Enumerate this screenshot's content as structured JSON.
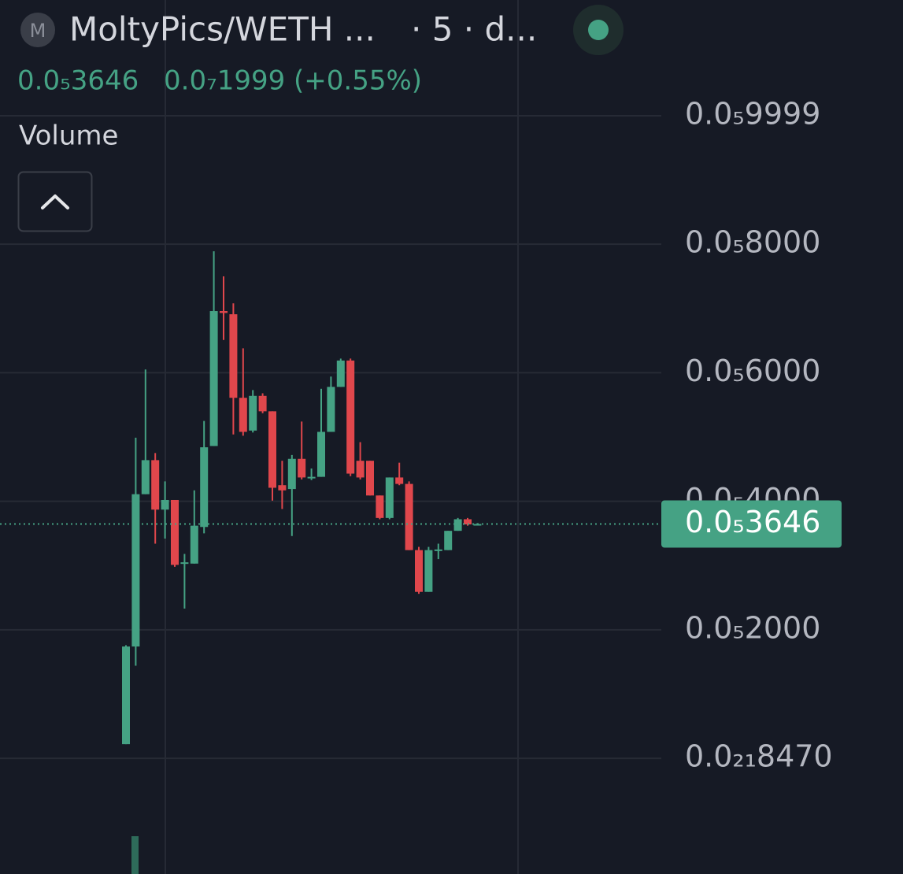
{
  "header": {
    "icon": "M",
    "pair": "MoltyPics/WETH ...",
    "meta": "· 5 · d..."
  },
  "legend": {
    "price": "0.0₅3646",
    "change": "0.0₇1999 (+0.55%)",
    "volume": "Volume"
  },
  "chart_data": {
    "type": "candlestick",
    "up_color": "#45a284",
    "down_color": "#e0474c",
    "grid": true,
    "ylim": [
      -1.8e-06,
      1.18e-05
    ],
    "yticks": [
      {
        "value": 8.47e-26,
        "label": "0.0₂₁8470"
      },
      {
        "value": 2e-06,
        "label": "0.0₅2000"
      },
      {
        "value": 4e-06,
        "label": "0.0₅4000"
      },
      {
        "value": 6e-06,
        "label": "0.0₅6000"
      },
      {
        "value": 8e-06,
        "label": "0.0₅8000"
      },
      {
        "value": 9.999e-06,
        "label": "0.0₅9999"
      }
    ],
    "last_price": {
      "value": 3.646e-06,
      "label": "0.0₅3646"
    },
    "open": [
      2.2e-07,
      1.74e-06,
      4.11e-06,
      4.64e-06,
      3.87e-06,
      4.02e-06,
      3.03e-06,
      3.03e-06,
      3.6e-06,
      4.86e-06,
      6.96e-06,
      6.91e-06,
      5.61e-06,
      5.1e-06,
      5.64e-06,
      5.4e-06,
      4.25e-06,
      4.19e-06,
      4.66e-06,
      4.36e-06,
      4.38e-06,
      5.08e-06,
      5.78e-06,
      6.19e-06,
      4.63e-06,
      4.63e-06,
      4.09e-06,
      3.74e-06,
      4.37e-06,
      4.27e-06,
      3.24e-06,
      2.59e-06,
      3.24e-06,
      3.24e-06,
      3.54e-06,
      3.72e-06,
      3.64e-06
    ],
    "high": [
      1.76e-06,
      4.99e-06,
      6.05e-06,
      4.75e-06,
      4.31e-06,
      4.02e-06,
      3.18e-06,
      4.17e-06,
      5.25e-06,
      7.89e-06,
      7.5e-06,
      7.08e-06,
      6.38e-06,
      5.73e-06,
      5.68e-06,
      5.4e-06,
      4.63e-06,
      4.72e-06,
      5.24e-06,
      4.51e-06,
      5.75e-06,
      5.94e-06,
      6.22e-06,
      6.22e-06,
      4.92e-06,
      4.63e-06,
      4.09e-06,
      4.37e-06,
      4.6e-06,
      4.31e-06,
      3.29e-06,
      3.29e-06,
      3.34e-06,
      3.54e-06,
      3.74e-06,
      3.74e-06,
      3.66e-06
    ],
    "low": [
      2.2e-07,
      1.44e-06,
      4.11e-06,
      3.34e-06,
      3.42e-06,
      2.98e-06,
      2.33e-06,
      3.03e-06,
      3.5e-06,
      4.86e-06,
      6.51e-06,
      5.04e-06,
      5.02e-06,
      5.07e-06,
      5.37e-06,
      4.01e-06,
      3.88e-06,
      3.46e-06,
      4.34e-06,
      4.33e-06,
      4.38e-06,
      5.08e-06,
      5.78e-06,
      4.39e-06,
      4.34e-06,
      4.09e-06,
      3.72e-06,
      3.72e-06,
      4.25e-06,
      3.24e-06,
      2.56e-06,
      2.59e-06,
      3.1e-06,
      3.24e-06,
      3.54e-06,
      3.62e-06,
      3.63e-06
    ],
    "close": [
      1.74e-06,
      4.11e-06,
      4.64e-06,
      3.87e-06,
      4.02e-06,
      3.01e-06,
      3.05e-06,
      3.62e-06,
      4.84e-06,
      6.96e-06,
      6.93e-06,
      5.61e-06,
      5.08e-06,
      5.64e-06,
      5.4e-06,
      4.21e-06,
      4.17e-06,
      4.66e-06,
      4.37e-06,
      4.38e-06,
      5.08e-06,
      5.78e-06,
      6.19e-06,
      4.43e-06,
      4.37e-06,
      4.09e-06,
      3.74e-06,
      4.37e-06,
      4.27e-06,
      3.24e-06,
      2.59e-06,
      3.24e-06,
      3.25e-06,
      3.54e-06,
      3.72e-06,
      3.64e-06,
      3.646e-06
    ]
  }
}
